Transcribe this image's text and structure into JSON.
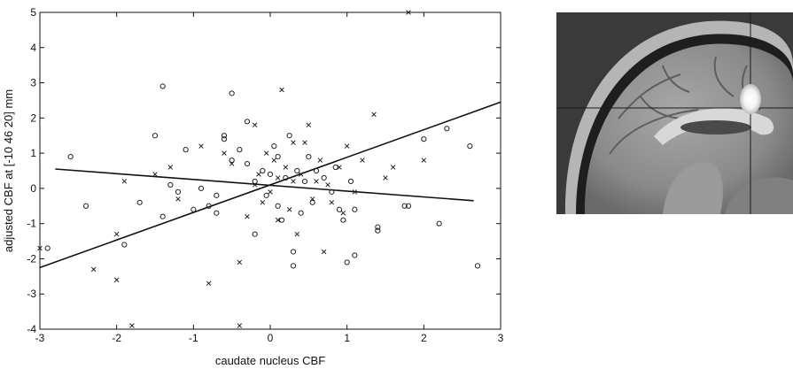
{
  "chart_data": {
    "type": "scatter",
    "xlabel": "caudate nucleus CBF",
    "ylabel": "adjusted CBF at [-10  46  20] mm",
    "xlim": [
      -3,
      3
    ],
    "ylim": [
      -4,
      5
    ],
    "xticks": [
      -3,
      -2,
      -1,
      0,
      1,
      2,
      3
    ],
    "yticks": [
      -4,
      -3,
      -2,
      -1,
      0,
      1,
      2,
      3,
      4,
      5
    ],
    "grid": false,
    "series": [
      {
        "marker": "o",
        "color": "#222222",
        "points": [
          [
            -2.9,
            -1.7
          ],
          [
            -2.6,
            0.9
          ],
          [
            -2.4,
            -0.5
          ],
          [
            -1.9,
            -1.6
          ],
          [
            -1.7,
            -0.4
          ],
          [
            -1.5,
            1.5
          ],
          [
            -1.4,
            2.9
          ],
          [
            -1.4,
            -0.8
          ],
          [
            -1.3,
            0.1
          ],
          [
            -1.2,
            -0.1
          ],
          [
            -1.1,
            1.1
          ],
          [
            -1.0,
            -0.6
          ],
          [
            -0.9,
            0.0
          ],
          [
            -0.8,
            -0.5
          ],
          [
            -0.7,
            -0.2
          ],
          [
            -0.7,
            -0.7
          ],
          [
            -0.6,
            1.5
          ],
          [
            -0.6,
            1.4
          ],
          [
            -0.5,
            2.7
          ],
          [
            -0.5,
            0.8
          ],
          [
            -0.4,
            1.1
          ],
          [
            -0.3,
            1.9
          ],
          [
            -0.3,
            0.7
          ],
          [
            -0.2,
            0.2
          ],
          [
            -0.2,
            -1.3
          ],
          [
            -0.1,
            0.5
          ],
          [
            -0.05,
            -0.2
          ],
          [
            0.0,
            0.4
          ],
          [
            0.05,
            1.2
          ],
          [
            0.1,
            -0.5
          ],
          [
            0.1,
            0.9
          ],
          [
            0.15,
            -0.9
          ],
          [
            0.2,
            0.3
          ],
          [
            0.25,
            1.5
          ],
          [
            0.3,
            -1.8
          ],
          [
            0.3,
            -2.2
          ],
          [
            0.35,
            0.5
          ],
          [
            0.4,
            -0.7
          ],
          [
            0.45,
            0.2
          ],
          [
            0.5,
            0.9
          ],
          [
            0.55,
            -0.4
          ],
          [
            0.6,
            0.5
          ],
          [
            0.7,
            0.3
          ],
          [
            0.8,
            -0.1
          ],
          [
            0.85,
            0.6
          ],
          [
            0.9,
            -0.6
          ],
          [
            0.95,
            -0.9
          ],
          [
            1.0,
            -2.1
          ],
          [
            1.05,
            0.2
          ],
          [
            1.1,
            -0.6
          ],
          [
            1.1,
            -1.9
          ],
          [
            1.4,
            -1.1
          ],
          [
            1.4,
            -1.2
          ],
          [
            1.75,
            -0.5
          ],
          [
            1.8,
            -0.5
          ],
          [
            2.0,
            1.4
          ],
          [
            2.2,
            -1.0
          ],
          [
            2.3,
            1.7
          ],
          [
            2.6,
            1.2
          ],
          [
            2.7,
            -2.2
          ]
        ]
      },
      {
        "marker": "x",
        "color": "#222222",
        "points": [
          [
            -3.0,
            -1.7
          ],
          [
            -2.3,
            -2.3
          ],
          [
            -2.0,
            -1.3
          ],
          [
            -2.0,
            -2.6
          ],
          [
            -1.9,
            0.2
          ],
          [
            -1.8,
            -3.9
          ],
          [
            -1.5,
            0.4
          ],
          [
            -1.3,
            0.6
          ],
          [
            -1.2,
            -0.3
          ],
          [
            -0.9,
            1.2
          ],
          [
            -0.8,
            -2.7
          ],
          [
            -0.6,
            1.0
          ],
          [
            -0.5,
            0.7
          ],
          [
            -0.4,
            -2.1
          ],
          [
            -0.4,
            -3.9
          ],
          [
            -0.3,
            -0.8
          ],
          [
            -0.2,
            1.8
          ],
          [
            -0.2,
            0.1
          ],
          [
            -0.15,
            0.4
          ],
          [
            -0.1,
            -0.4
          ],
          [
            -0.05,
            1.0
          ],
          [
            0.0,
            -0.1
          ],
          [
            0.05,
            0.8
          ],
          [
            0.1,
            0.3
          ],
          [
            0.1,
            -0.9
          ],
          [
            0.15,
            2.8
          ],
          [
            0.2,
            0.6
          ],
          [
            0.25,
            -0.6
          ],
          [
            0.3,
            1.3
          ],
          [
            0.3,
            0.2
          ],
          [
            0.35,
            -1.3
          ],
          [
            0.4,
            0.4
          ],
          [
            0.45,
            1.3
          ],
          [
            0.5,
            1.8
          ],
          [
            0.55,
            -0.3
          ],
          [
            0.6,
            0.2
          ],
          [
            0.65,
            0.8
          ],
          [
            0.7,
            -1.8
          ],
          [
            0.75,
            0.1
          ],
          [
            0.8,
            -0.4
          ],
          [
            0.9,
            0.6
          ],
          [
            0.95,
            -0.7
          ],
          [
            1.0,
            1.2
          ],
          [
            1.1,
            -0.1
          ],
          [
            1.2,
            0.8
          ],
          [
            1.35,
            2.1
          ],
          [
            1.5,
            0.3
          ],
          [
            1.6,
            0.6
          ],
          [
            1.8,
            5.0
          ],
          [
            2.0,
            0.8
          ]
        ]
      }
    ],
    "lines": [
      {
        "x": [
          -3,
          3
        ],
        "y": [
          -2.25,
          2.45
        ]
      },
      {
        "x": [
          -2.8,
          2.65
        ],
        "y": [
          0.55,
          -0.35
        ]
      }
    ]
  },
  "icons": {
    "image": "mri-brain-image"
  }
}
